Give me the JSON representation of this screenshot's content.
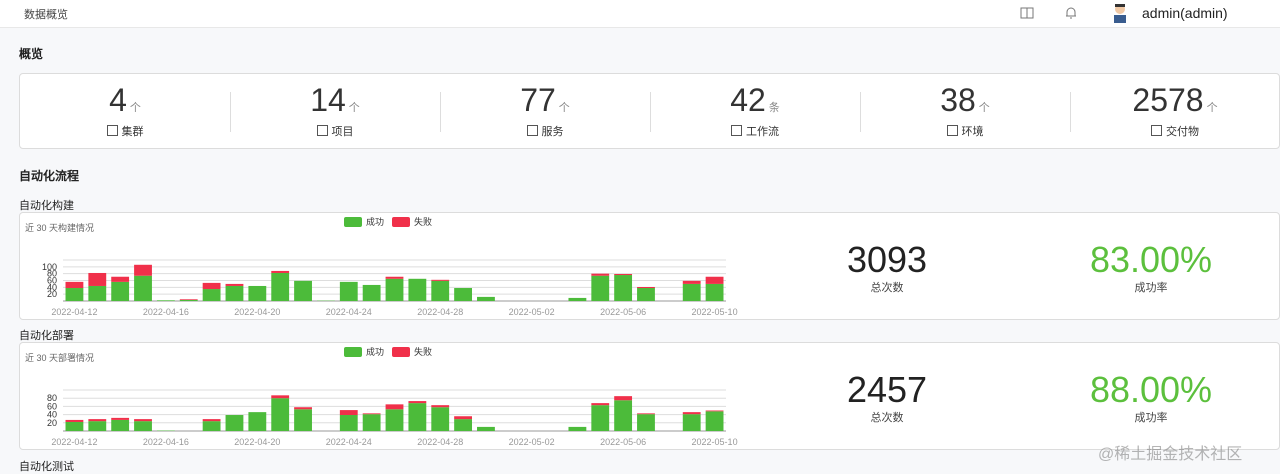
{
  "header": {
    "title": "数据概览",
    "user": "admin(admin)"
  },
  "overview": {
    "title": "概览",
    "stats": [
      {
        "value": 4,
        "unit": "个",
        "label": "集群"
      },
      {
        "value": 14,
        "unit": "个",
        "label": "项目"
      },
      {
        "value": 77,
        "unit": "个",
        "label": "服务"
      },
      {
        "value": 42,
        "unit": "条",
        "label": "工作流"
      },
      {
        "value": 38,
        "unit": "个",
        "label": "环境"
      },
      {
        "value": 2578,
        "unit": "个",
        "label": "交付物"
      }
    ]
  },
  "section_title": "自动化流程",
  "panels": [
    {
      "title": "自动化构建",
      "total": 3093,
      "total_label": "总次数",
      "rate": "83.00%",
      "rate_label": "成功率"
    },
    {
      "title": "自动化部署",
      "total": 2457,
      "total_label": "总次数",
      "rate": "88.00%",
      "rate_label": "成功率"
    }
  ],
  "test_title": "自动化测试",
  "watermark": "@稀土掘金技术社区",
  "chart_data": [
    {
      "type": "bar",
      "stacked": true,
      "subtitle": "近 30 天构建情况",
      "categories": [
        "2022-04-12",
        null,
        null,
        null,
        "2022-04-16",
        null,
        null,
        null,
        "2022-04-20",
        null,
        null,
        null,
        "2022-04-24",
        null,
        null,
        null,
        "2022-04-28",
        null,
        null,
        null,
        "2022-05-02",
        null,
        null,
        null,
        "2022-05-06",
        null,
        null,
        null,
        "2022-05-10"
      ],
      "series": [
        {
          "name": "成功",
          "color": "#4cbb3a",
          "values": [
            38,
            44,
            56,
            74,
            2,
            3,
            35,
            44,
            44,
            82,
            59,
            1,
            56,
            47,
            65,
            65,
            59,
            38,
            12,
            0,
            0,
            0,
            9,
            74,
            76,
            38,
            0,
            50,
            50
          ]
        },
        {
          "name": "失败",
          "color": "#f0304a",
          "values": [
            18,
            38,
            15,
            32,
            0,
            2,
            18,
            6,
            0,
            6,
            0,
            0,
            0,
            0,
            6,
            0,
            3,
            0,
            0,
            0,
            0,
            0,
            0,
            6,
            3,
            3,
            0,
            9,
            21
          ]
        }
      ],
      "ylim": [
        0,
        120
      ],
      "yticks": [
        20,
        40,
        60,
        80,
        100
      ],
      "grid": true
    },
    {
      "type": "bar",
      "stacked": true,
      "subtitle": "近 30 天部署情况",
      "categories": [
        "2022-04-12",
        null,
        null,
        null,
        "2022-04-16",
        null,
        null,
        null,
        "2022-04-20",
        null,
        null,
        null,
        "2022-04-24",
        null,
        null,
        null,
        "2022-04-28",
        null,
        null,
        null,
        "2022-05-02",
        null,
        null,
        null,
        "2022-05-06",
        null,
        null,
        null,
        "2022-05-10"
      ],
      "series": [
        {
          "name": "成功",
          "color": "#4cbb3a",
          "values": [
            22,
            24,
            27,
            24,
            1,
            0,
            24,
            39,
            46,
            80,
            53,
            0,
            39,
            41,
            53,
            68,
            58,
            29,
            10,
            0,
            0,
            0,
            10,
            63,
            75,
            41,
            0,
            41,
            48
          ]
        },
        {
          "name": "失败",
          "color": "#f0304a",
          "values": [
            5,
            5,
            5,
            5,
            0,
            0,
            5,
            0,
            0,
            7,
            5,
            0,
            12,
            2,
            12,
            5,
            5,
            7,
            0,
            0,
            0,
            0,
            0,
            5,
            10,
            2,
            0,
            5,
            2
          ]
        }
      ],
      "ylim": [
        0,
        100
      ],
      "yticks": [
        20,
        40,
        60,
        80
      ],
      "grid": true
    }
  ]
}
